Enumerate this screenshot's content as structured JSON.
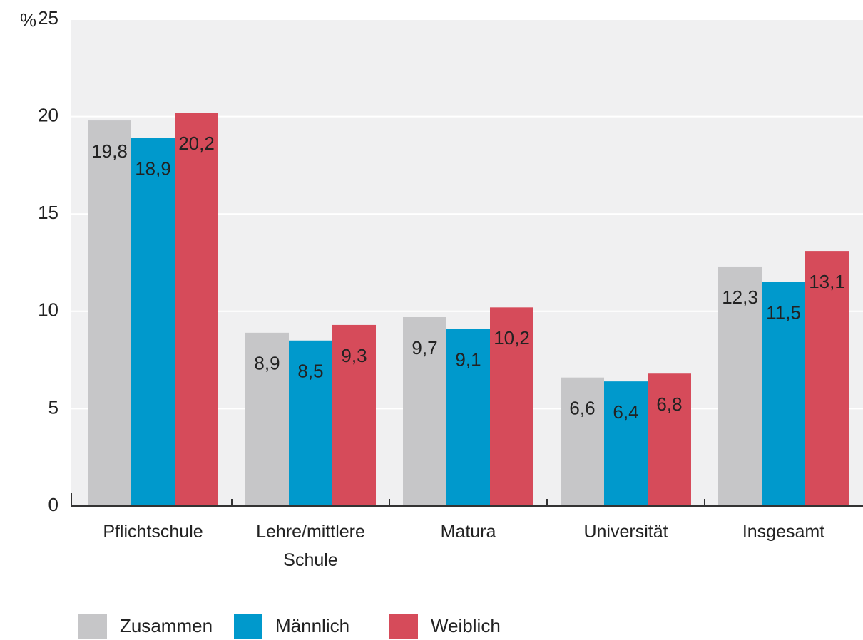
{
  "chart_data": {
    "type": "bar",
    "y_label": "%",
    "categories": [
      "Pflichtschule",
      "Lehre/mittlere Schule",
      "Matura",
      "Universität",
      "Insgesamt"
    ],
    "series": [
      {
        "name": "Zusammen",
        "color": "#c6c6c8",
        "values": [
          19.8,
          8.9,
          9.7,
          6.6,
          12.3
        ],
        "value_labels": [
          "19,8",
          "8,9",
          "9,7",
          "6,6",
          "12,3"
        ]
      },
      {
        "name": "Männlich",
        "color": "#0099cc",
        "values": [
          18.9,
          8.5,
          9.1,
          6.4,
          11.5
        ],
        "value_labels": [
          "18,9",
          "8,5",
          "9,1",
          "6,4",
          "11,5"
        ]
      },
      {
        "name": "Weiblich",
        "color": "#d64b5a",
        "values": [
          20.2,
          9.3,
          10.2,
          6.8,
          13.1
        ],
        "value_labels": [
          "20,2",
          "9,3",
          "10,2",
          "6,8",
          "13,1"
        ]
      }
    ],
    "ylim": [
      0,
      25
    ],
    "yticks": [
      0,
      5,
      10,
      15,
      20,
      25
    ],
    "grid": true
  }
}
